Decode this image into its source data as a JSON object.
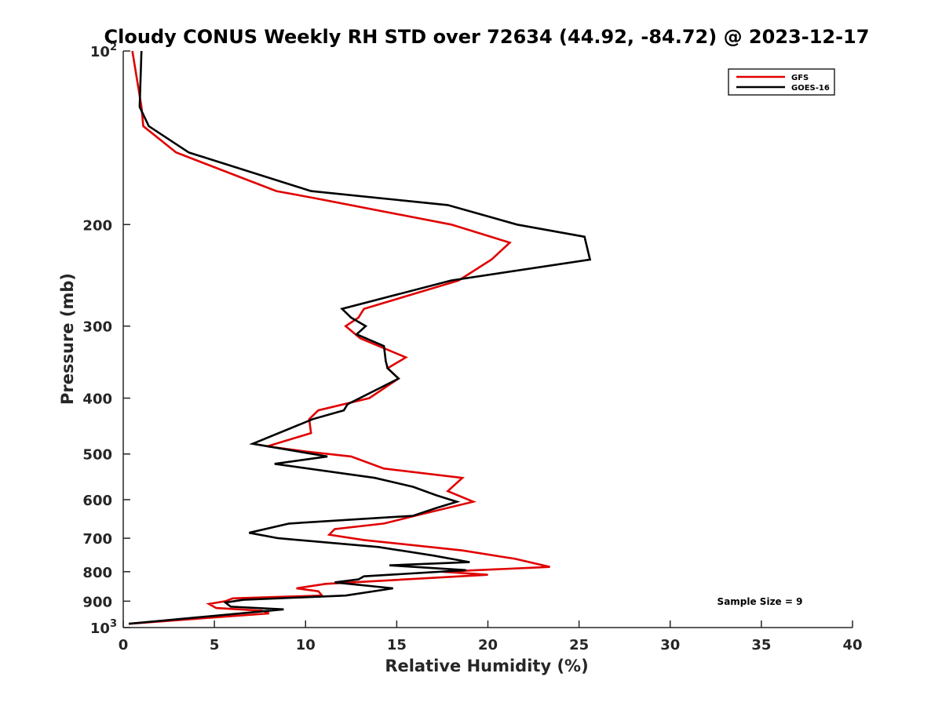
{
  "chart_data": {
    "type": "line",
    "title": "Cloudy CONUS Weekly RH STD over 72634 (44.92, -84.72) @ 2023-12-17",
    "xlabel": "Relative Humidity (%)",
    "ylabel": "Pressure (mb)",
    "xlim": [
      0,
      40
    ],
    "ylim": [
      100,
      1000
    ],
    "yscale": "log",
    "y_reversed": true,
    "x_ticks": [
      0,
      5,
      10,
      15,
      20,
      25,
      30,
      35,
      40
    ],
    "y_ticks": [
      {
        "value": 100,
        "label": "10",
        "sup": "2"
      },
      {
        "value": 200,
        "label": "200"
      },
      {
        "value": 300,
        "label": "300"
      },
      {
        "value": 400,
        "label": "400"
      },
      {
        "value": 500,
        "label": "500"
      },
      {
        "value": 600,
        "label": "600"
      },
      {
        "value": 700,
        "label": "700"
      },
      {
        "value": 800,
        "label": "800"
      },
      {
        "value": 900,
        "label": "900"
      },
      {
        "value": 1000,
        "label": "10",
        "sup": "3"
      }
    ],
    "grid": false,
    "legend_position": "top-right",
    "annotation": "Sample Size = 9",
    "series": [
      {
        "name": "GFS",
        "color": "#e00000",
        "points": [
          [
            0.5,
            100
          ],
          [
            1.0,
            125
          ],
          [
            1.1,
            135
          ],
          [
            2.9,
            150
          ],
          [
            8.4,
            175
          ],
          [
            10.5,
            180
          ],
          [
            18.0,
            200
          ],
          [
            21.2,
            215
          ],
          [
            20.2,
            230
          ],
          [
            18.4,
            250
          ],
          [
            13.2,
            280
          ],
          [
            12.9,
            290
          ],
          [
            12.2,
            300
          ],
          [
            13.0,
            315
          ],
          [
            15.5,
            340
          ],
          [
            14.5,
            355
          ],
          [
            15.1,
            370
          ],
          [
            13.5,
            400
          ],
          [
            10.7,
            420
          ],
          [
            10.2,
            435
          ],
          [
            10.3,
            460
          ],
          [
            7.9,
            485
          ],
          [
            10.0,
            495
          ],
          [
            12.5,
            505
          ],
          [
            14.3,
            530
          ],
          [
            18.6,
            550
          ],
          [
            17.8,
            580
          ],
          [
            19.2,
            605
          ],
          [
            16.0,
            640
          ],
          [
            14.3,
            660
          ],
          [
            11.6,
            675
          ],
          [
            11.3,
            690
          ],
          [
            13.2,
            705
          ],
          [
            18.6,
            735
          ],
          [
            21.5,
            760
          ],
          [
            23.4,
            785
          ],
          [
            17.5,
            800
          ],
          [
            20.0,
            810
          ],
          [
            11.1,
            840
          ],
          [
            9.5,
            855
          ],
          [
            10.7,
            865
          ],
          [
            10.9,
            880
          ],
          [
            6.0,
            890
          ],
          [
            5.6,
            900
          ],
          [
            4.7,
            910
          ],
          [
            5.1,
            925
          ],
          [
            7.6,
            935
          ],
          [
            8.0,
            945
          ],
          [
            0.3,
            985
          ]
        ]
      },
      {
        "name": "GOES-16",
        "color": "#000000",
        "points": [
          [
            1.0,
            100
          ],
          [
            0.9,
            125
          ],
          [
            1.4,
            135
          ],
          [
            3.6,
            150
          ],
          [
            10.3,
            175
          ],
          [
            17.8,
            185
          ],
          [
            21.6,
            200
          ],
          [
            25.3,
            210
          ],
          [
            25.6,
            230
          ],
          [
            18.0,
            250
          ],
          [
            12.0,
            280
          ],
          [
            12.5,
            290
          ],
          [
            13.3,
            300
          ],
          [
            12.8,
            310
          ],
          [
            14.3,
            325
          ],
          [
            14.4,
            345
          ],
          [
            14.5,
            355
          ],
          [
            15.1,
            370
          ],
          [
            12.3,
            410
          ],
          [
            12.1,
            420
          ],
          [
            10.4,
            435
          ],
          [
            7.1,
            480
          ],
          [
            11.2,
            505
          ],
          [
            8.3,
            520
          ],
          [
            13.8,
            550
          ],
          [
            15.9,
            570
          ],
          [
            17.2,
            590
          ],
          [
            18.3,
            605
          ],
          [
            17.2,
            620
          ],
          [
            15.9,
            640
          ],
          [
            9.1,
            660
          ],
          [
            6.9,
            685
          ],
          [
            8.5,
            700
          ],
          [
            14.0,
            725
          ],
          [
            17.0,
            750
          ],
          [
            19.0,
            770
          ],
          [
            14.6,
            780
          ],
          [
            18.8,
            795
          ],
          [
            13.2,
            815
          ],
          [
            12.9,
            825
          ],
          [
            11.6,
            835
          ],
          [
            14.8,
            855
          ],
          [
            12.2,
            880
          ],
          [
            6.6,
            895
          ],
          [
            5.6,
            905
          ],
          [
            5.9,
            920
          ],
          [
            8.8,
            930
          ],
          [
            0.3,
            985
          ]
        ]
      }
    ]
  }
}
